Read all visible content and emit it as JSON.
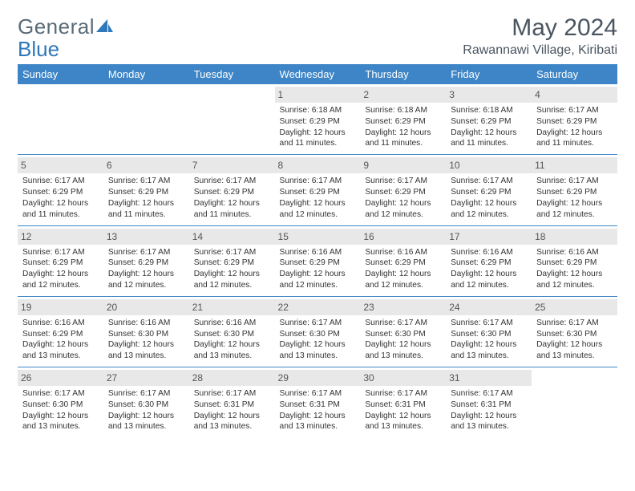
{
  "logo": {
    "word1": "General",
    "word2": "Blue",
    "color_gray": "#5a6b78",
    "color_blue": "#2f78b9"
  },
  "title": "May 2024",
  "location": "Rawannawi Village, Kiribati",
  "header_bg": "#3d85c6",
  "daynum_bg": "#e8e8e8",
  "border_color": "#3d85c6",
  "weekdays": [
    "Sunday",
    "Monday",
    "Tuesday",
    "Wednesday",
    "Thursday",
    "Friday",
    "Saturday"
  ],
  "weeks": [
    [
      {
        "n": "",
        "sr": "",
        "ss": "",
        "dl": ""
      },
      {
        "n": "",
        "sr": "",
        "ss": "",
        "dl": ""
      },
      {
        "n": "",
        "sr": "",
        "ss": "",
        "dl": ""
      },
      {
        "n": "1",
        "sr": "6:18 AM",
        "ss": "6:29 PM",
        "dl": "12 hours and 11 minutes."
      },
      {
        "n": "2",
        "sr": "6:18 AM",
        "ss": "6:29 PM",
        "dl": "12 hours and 11 minutes."
      },
      {
        "n": "3",
        "sr": "6:18 AM",
        "ss": "6:29 PM",
        "dl": "12 hours and 11 minutes."
      },
      {
        "n": "4",
        "sr": "6:17 AM",
        "ss": "6:29 PM",
        "dl": "12 hours and 11 minutes."
      }
    ],
    [
      {
        "n": "5",
        "sr": "6:17 AM",
        "ss": "6:29 PM",
        "dl": "12 hours and 11 minutes."
      },
      {
        "n": "6",
        "sr": "6:17 AM",
        "ss": "6:29 PM",
        "dl": "12 hours and 11 minutes."
      },
      {
        "n": "7",
        "sr": "6:17 AM",
        "ss": "6:29 PM",
        "dl": "12 hours and 11 minutes."
      },
      {
        "n": "8",
        "sr": "6:17 AM",
        "ss": "6:29 PM",
        "dl": "12 hours and 12 minutes."
      },
      {
        "n": "9",
        "sr": "6:17 AM",
        "ss": "6:29 PM",
        "dl": "12 hours and 12 minutes."
      },
      {
        "n": "10",
        "sr": "6:17 AM",
        "ss": "6:29 PM",
        "dl": "12 hours and 12 minutes."
      },
      {
        "n": "11",
        "sr": "6:17 AM",
        "ss": "6:29 PM",
        "dl": "12 hours and 12 minutes."
      }
    ],
    [
      {
        "n": "12",
        "sr": "6:17 AM",
        "ss": "6:29 PM",
        "dl": "12 hours and 12 minutes."
      },
      {
        "n": "13",
        "sr": "6:17 AM",
        "ss": "6:29 PM",
        "dl": "12 hours and 12 minutes."
      },
      {
        "n": "14",
        "sr": "6:17 AM",
        "ss": "6:29 PM",
        "dl": "12 hours and 12 minutes."
      },
      {
        "n": "15",
        "sr": "6:16 AM",
        "ss": "6:29 PM",
        "dl": "12 hours and 12 minutes."
      },
      {
        "n": "16",
        "sr": "6:16 AM",
        "ss": "6:29 PM",
        "dl": "12 hours and 12 minutes."
      },
      {
        "n": "17",
        "sr": "6:16 AM",
        "ss": "6:29 PM",
        "dl": "12 hours and 12 minutes."
      },
      {
        "n": "18",
        "sr": "6:16 AM",
        "ss": "6:29 PM",
        "dl": "12 hours and 12 minutes."
      }
    ],
    [
      {
        "n": "19",
        "sr": "6:16 AM",
        "ss": "6:29 PM",
        "dl": "12 hours and 13 minutes."
      },
      {
        "n": "20",
        "sr": "6:16 AM",
        "ss": "6:30 PM",
        "dl": "12 hours and 13 minutes."
      },
      {
        "n": "21",
        "sr": "6:16 AM",
        "ss": "6:30 PM",
        "dl": "12 hours and 13 minutes."
      },
      {
        "n": "22",
        "sr": "6:17 AM",
        "ss": "6:30 PM",
        "dl": "12 hours and 13 minutes."
      },
      {
        "n": "23",
        "sr": "6:17 AM",
        "ss": "6:30 PM",
        "dl": "12 hours and 13 minutes."
      },
      {
        "n": "24",
        "sr": "6:17 AM",
        "ss": "6:30 PM",
        "dl": "12 hours and 13 minutes."
      },
      {
        "n": "25",
        "sr": "6:17 AM",
        "ss": "6:30 PM",
        "dl": "12 hours and 13 minutes."
      }
    ],
    [
      {
        "n": "26",
        "sr": "6:17 AM",
        "ss": "6:30 PM",
        "dl": "12 hours and 13 minutes."
      },
      {
        "n": "27",
        "sr": "6:17 AM",
        "ss": "6:30 PM",
        "dl": "12 hours and 13 minutes."
      },
      {
        "n": "28",
        "sr": "6:17 AM",
        "ss": "6:31 PM",
        "dl": "12 hours and 13 minutes."
      },
      {
        "n": "29",
        "sr": "6:17 AM",
        "ss": "6:31 PM",
        "dl": "12 hours and 13 minutes."
      },
      {
        "n": "30",
        "sr": "6:17 AM",
        "ss": "6:31 PM",
        "dl": "12 hours and 13 minutes."
      },
      {
        "n": "31",
        "sr": "6:17 AM",
        "ss": "6:31 PM",
        "dl": "12 hours and 13 minutes."
      },
      {
        "n": "",
        "sr": "",
        "ss": "",
        "dl": ""
      }
    ]
  ],
  "labels": {
    "sunrise": "Sunrise: ",
    "sunset": "Sunset: ",
    "daylight": "Daylight: "
  }
}
